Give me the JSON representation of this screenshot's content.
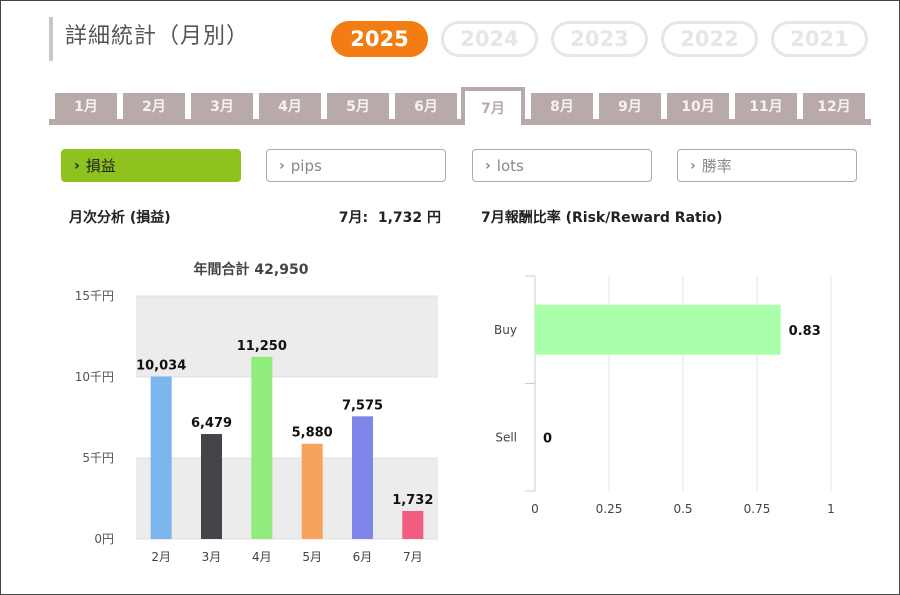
{
  "page": {
    "title": "詳細統計（月別）"
  },
  "years": [
    {
      "label": "2025",
      "active": true
    },
    {
      "label": "2024",
      "active": false
    },
    {
      "label": "2023",
      "active": false
    },
    {
      "label": "2022",
      "active": false
    },
    {
      "label": "2021",
      "active": false
    }
  ],
  "months": [
    {
      "label": "1月",
      "active": false
    },
    {
      "label": "2月",
      "active": false
    },
    {
      "label": "3月",
      "active": false
    },
    {
      "label": "4月",
      "active": false
    },
    {
      "label": "5月",
      "active": false
    },
    {
      "label": "6月",
      "active": false
    },
    {
      "label": "7月",
      "active": true
    },
    {
      "label": "8月",
      "active": false
    },
    {
      "label": "9月",
      "active": false
    },
    {
      "label": "10月",
      "active": false
    },
    {
      "label": "11月",
      "active": false
    },
    {
      "label": "12月",
      "active": false
    }
  ],
  "filters": [
    {
      "label": "損益",
      "active": true
    },
    {
      "label": "pips",
      "active": false
    },
    {
      "label": "lots",
      "active": false
    },
    {
      "label": "勝率",
      "active": false
    }
  ],
  "monthly": {
    "title": "月次分析 (損益)",
    "current": "7月:  1,732 円"
  },
  "rr": {
    "title": "7月報酬比率 (Risk/Reward Ratio)"
  },
  "chart_data": [
    {
      "type": "bar",
      "title": "年間合計 42,950",
      "categories": [
        "2月",
        "3月",
        "4月",
        "5月",
        "6月",
        "7月"
      ],
      "values": [
        10034,
        6479,
        11250,
        5880,
        7575,
        1732
      ],
      "value_labels": [
        "10,034",
        "6,479",
        "11,250",
        "5,880",
        "7,575",
        "1,732"
      ],
      "colors": [
        "#7cb5ec",
        "#434348",
        "#90ed7d",
        "#f7a35c",
        "#8085e9",
        "#f15c80"
      ],
      "ylim": [
        0,
        15000
      ],
      "yticks": [
        0,
        5000,
        10000,
        15000
      ],
      "ytick_labels": [
        "0円",
        "5千円",
        "10千円",
        "15千円"
      ],
      "grid": "alternating bands"
    },
    {
      "type": "bar",
      "orientation": "horizontal",
      "categories": [
        "Buy",
        "Sell"
      ],
      "values": [
        0.83,
        0
      ],
      "value_labels": [
        "0.83",
        "0"
      ],
      "colors": [
        "#aaffaa",
        "#aaffaa"
      ],
      "xlim": [
        0,
        1
      ],
      "xticks": [
        0,
        0.25,
        0.5,
        0.75,
        1
      ],
      "xtick_labels": [
        "0",
        "0.25",
        "0.5",
        "0.75",
        "1"
      ],
      "grid": true
    }
  ]
}
